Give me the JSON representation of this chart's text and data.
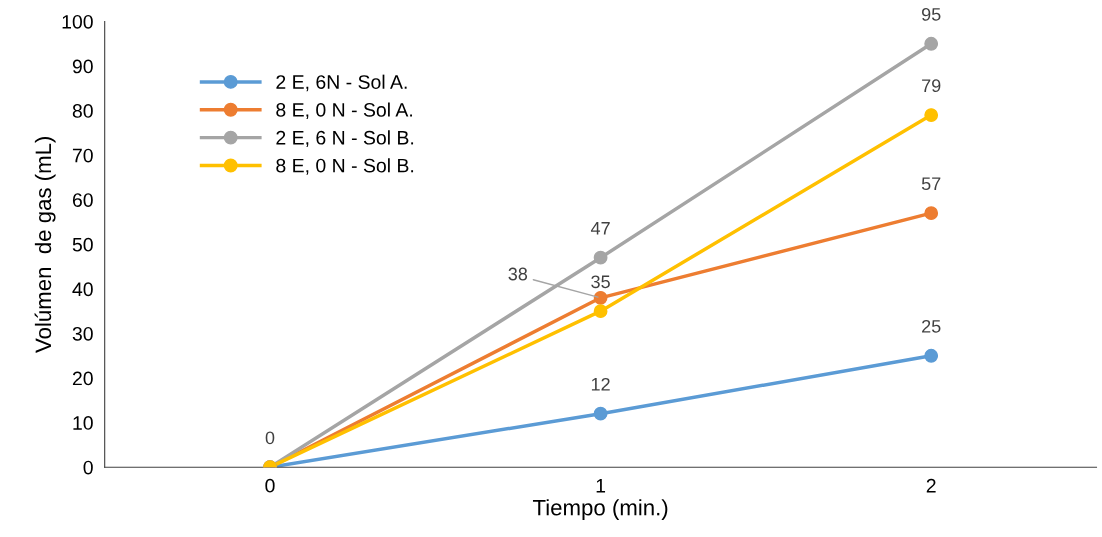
{
  "chart_data": {
    "type": "line",
    "xlabel": "Tiempo (min.)",
    "ylabel": "Volúmen  de gas (mL)",
    "x": [
      0,
      1,
      2
    ],
    "xlim": [
      -0.5,
      2.5
    ],
    "xticks": [
      0,
      1,
      2
    ],
    "series": [
      {
        "name": "2 E, 6N - Sol A.",
        "color": "#5b9bd5",
        "values": [
          0,
          12,
          25
        ],
        "value_labels": [
          "0",
          "12",
          "25"
        ]
      },
      {
        "name": "8 E, 0 N - Sol A.",
        "color": "#ed7d31",
        "values": [
          0,
          38,
          57
        ],
        "value_labels": [
          null,
          "38",
          "57"
        ]
      },
      {
        "name": "2 E, 6 N - Sol B.",
        "color": "#a5a5a5",
        "values": [
          0,
          47,
          95
        ],
        "value_labels": [
          null,
          "47",
          "95"
        ]
      },
      {
        "name": "8 E, 0 N - Sol B.",
        "color": "#ffc000",
        "values": [
          0,
          35,
          79
        ],
        "value_labels": [
          null,
          "35",
          "79"
        ]
      }
    ],
    "ylim": [
      0,
      100
    ],
    "yticks": [
      0,
      10,
      20,
      30,
      40,
      50,
      60,
      70,
      80,
      90,
      100
    ],
    "grid": false,
    "legend": "top left",
    "marker": "circle",
    "line_style": "solid"
  }
}
